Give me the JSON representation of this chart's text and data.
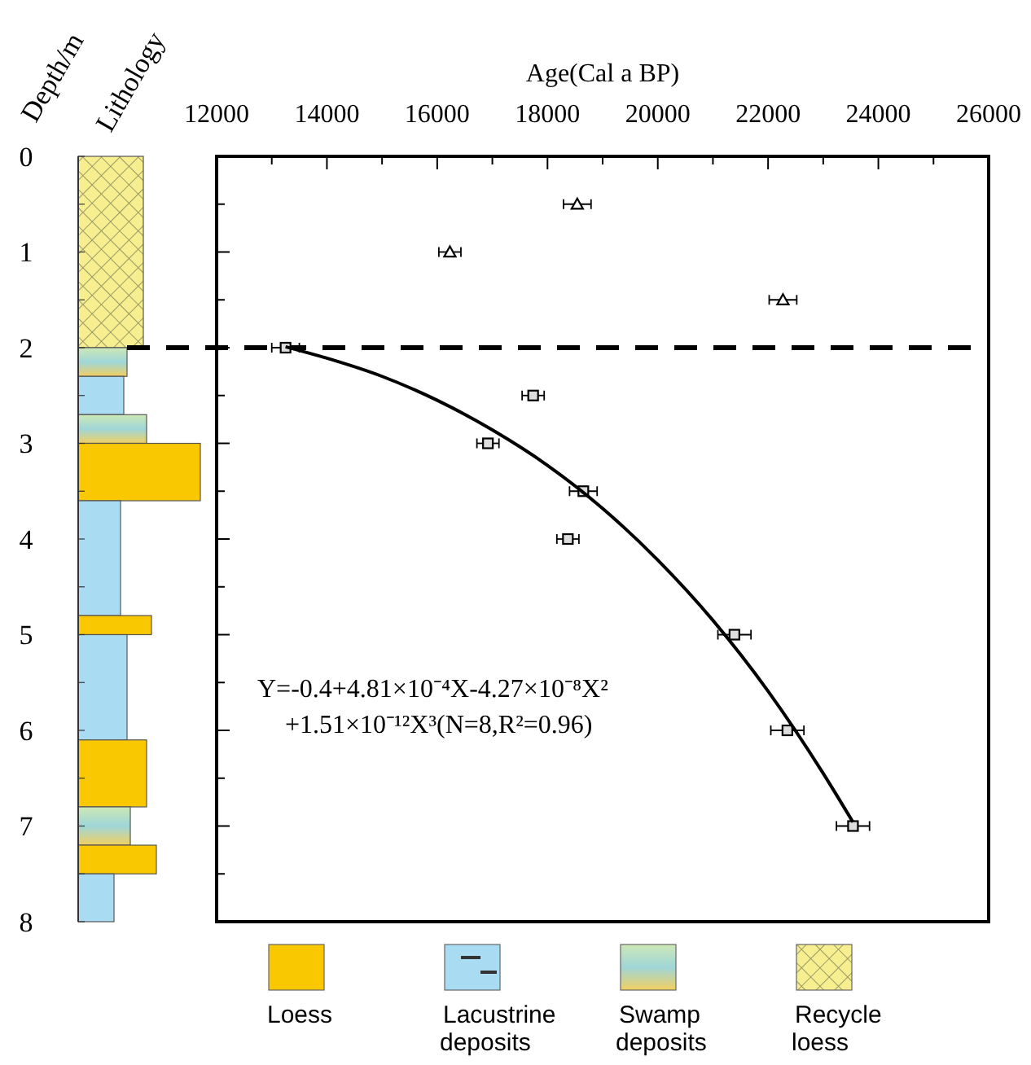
{
  "chart_data": {
    "type": "scatter",
    "xlabel": "Age(Cal a BP)",
    "ylabel": "Depth/m",
    "xlim": [
      12000,
      26000
    ],
    "xticks": [
      12000,
      14000,
      16000,
      18000,
      20000,
      22000,
      24000,
      26000
    ],
    "ylim": [
      8,
      0
    ],
    "yticks": [
      0,
      1,
      2,
      3,
      4,
      5,
      6,
      7,
      8
    ],
    "series": [
      {
        "type": "scatter",
        "marker": "triangle",
        "color": "#000000",
        "x": [
          18540,
          16230,
          22270
        ],
        "values": [
          0.5,
          1,
          1.5
        ],
        "xerrors": [
          250,
          200,
          250
        ]
      },
      {
        "type": "scatter",
        "marker": "square",
        "color": "#000000",
        "x": [
          13250,
          17740,
          16920,
          18650,
          18370,
          21390,
          22350,
          23540
        ],
        "values": [
          2,
          2.5,
          3,
          3.5,
          4,
          5,
          6,
          7
        ],
        "xerrors": [
          250,
          200,
          200,
          250,
          200,
          300,
          300,
          300
        ]
      },
      {
        "type": "line",
        "marker": "none",
        "line_style": "solid",
        "color": "#000000",
        "x": [
          13250,
          14000,
          15000,
          16000,
          17000,
          18000,
          19000,
          20000,
          21000,
          22000,
          23000,
          23540
        ],
        "values": [
          1.99,
          2.11,
          2.3,
          2.55,
          2.86,
          3.23,
          3.68,
          4.22,
          4.85,
          5.59,
          6.45,
          6.96
        ]
      }
    ],
    "ref_lines": [
      {
        "axis": "y",
        "value": 2,
        "color": "#000000",
        "line_style": "dashed"
      }
    ],
    "annotations": [
      "Lithology",
      "Y=-0.4+4.81×10⁻⁴X-4.27×10⁻⁸X²",
      "+1.51×10⁻¹²X³(N=8,R²=0.96)",
      "Loess",
      "Lacustrine deposits",
      "Swamp deposits",
      "Recycle loess"
    ]
  }
}
